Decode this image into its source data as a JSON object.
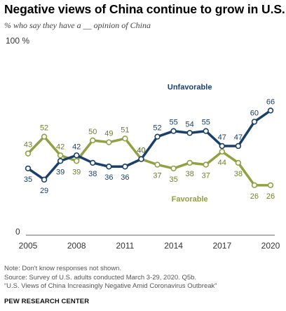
{
  "header": {
    "title": "Negative views of China continue to grow in U.S.",
    "subtitle": "% who say they have a __ opinion of China"
  },
  "chart_data": {
    "type": "line",
    "x": [
      2005,
      2006,
      2007,
      2008,
      2009,
      2010,
      2011,
      2012,
      2013,
      2014,
      2015,
      2016,
      2017,
      2018,
      2019,
      2020
    ],
    "series": [
      {
        "name": "Unfavorable",
        "color": "#1b3f6b",
        "values": [
          35,
          29,
          39,
          42,
          38,
          36,
          36,
          40,
          52,
          55,
          54,
          55,
          47,
          47,
          60,
          66
        ]
      },
      {
        "name": "Favorable",
        "color": "#8fa142",
        "values": [
          43,
          52,
          42,
          39,
          50,
          49,
          51,
          40,
          37,
          35,
          38,
          37,
          44,
          38,
          26,
          26
        ]
      }
    ],
    "x_ticks": [
      "2005",
      "2008",
      "2011",
      "2014",
      "2017",
      "2020"
    ],
    "y_tick_top": "100 %",
    "y_tick_bottom": "0",
    "ylim": [
      0,
      100
    ],
    "grid": false
  },
  "footer": {
    "notes": [
      "Note: Don't know responses not shown.",
      "Source: Survey of U.S. adults conducted March 3-29, 2020. Q5b.",
      "“U.S. Views of China Increasingly Negative Amid Coronavirus Outbreak”"
    ],
    "org": "PEW RESEARCH CENTER"
  }
}
